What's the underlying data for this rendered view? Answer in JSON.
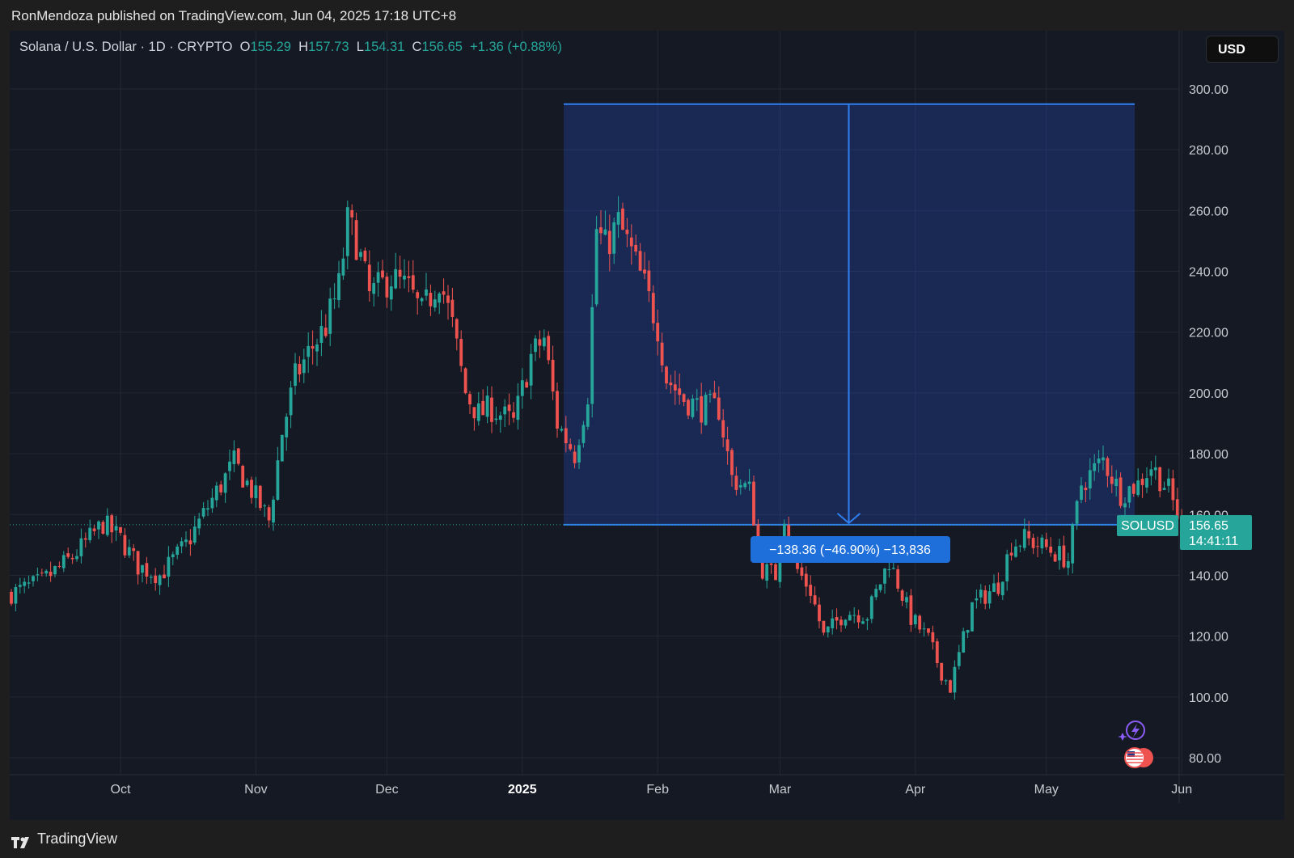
{
  "header": {
    "published": "RonMendoza published on TradingView.com, Jun 04, 2025 17:18 UTC+8"
  },
  "footer": {
    "brand": "TradingView"
  },
  "legend": {
    "symbol": "Solana / U.S. Dollar · 1D · CRYPTO",
    "open_label": "O",
    "open": "155.29",
    "high_label": "H",
    "high": "157.73",
    "low_label": "L",
    "low": "154.31",
    "close_label": "C",
    "close": "156.65",
    "change": "+1.36 (+0.88%)"
  },
  "currency": "USD",
  "price_tag": {
    "symbol": "SOLUSD",
    "price": "156.65",
    "countdown": "14:41:11"
  },
  "measure": {
    "label": "−138.36 (−46.90%) −13,836",
    "from_price": 295,
    "to_price": 156.65
  },
  "colors": {
    "up": "#26a69a",
    "down": "#ef5350",
    "accent": "#2962ff",
    "bg": "#151924"
  },
  "chart_data": {
    "type": "candlestick",
    "title": "Solana / U.S. Dollar · 1D · CRYPTO",
    "ylim": [
      75,
      315
    ],
    "y_ticks": [
      "300.00",
      "280.00",
      "260.00",
      "240.00",
      "220.00",
      "200.00",
      "180.00",
      "160.00",
      "140.00",
      "120.00",
      "100.00",
      "80.00"
    ],
    "x_ticks": [
      {
        "label": "Oct",
        "month": 1
      },
      {
        "label": "Nov",
        "month": 2
      },
      {
        "label": "Dec",
        "month": 3
      },
      {
        "label": "2025",
        "month": 4,
        "bold": true
      },
      {
        "label": "Feb",
        "month": 5
      },
      {
        "label": "Mar",
        "month": 6
      },
      {
        "label": "Apr",
        "month": 7
      },
      {
        "label": "May",
        "month": 8
      },
      {
        "label": "Jun",
        "month": 9
      }
    ],
    "x_range": [
      "2024-09-06",
      "2025-06-04"
    ],
    "series": [
      {
        "name": "SOLUSD",
        "anchors": [
          [
            "2024-09-06",
            134
          ],
          [
            "2024-09-13",
            138
          ],
          [
            "2024-09-20",
            146
          ],
          [
            "2024-09-27",
            157
          ],
          [
            "2024-10-01",
            152
          ],
          [
            "2024-10-05",
            143
          ],
          [
            "2024-10-10",
            140
          ],
          [
            "2024-10-16",
            150
          ],
          [
            "2024-10-22",
            165
          ],
          [
            "2024-10-27",
            177
          ],
          [
            "2024-10-31",
            168
          ],
          [
            "2024-11-04",
            158
          ],
          [
            "2024-11-07",
            187
          ],
          [
            "2024-11-10",
            205
          ],
          [
            "2024-11-13",
            213
          ],
          [
            "2024-11-17",
            222
          ],
          [
            "2024-11-20",
            235
          ],
          [
            "2024-11-22",
            256
          ],
          [
            "2024-11-24",
            250
          ],
          [
            "2024-11-27",
            232
          ],
          [
            "2024-12-02",
            238
          ],
          [
            "2024-12-06",
            234
          ],
          [
            "2024-12-09",
            226
          ],
          [
            "2024-12-13",
            238
          ],
          [
            "2024-12-16",
            222
          ],
          [
            "2024-12-19",
            200
          ],
          [
            "2024-12-22",
            193
          ],
          [
            "2024-12-25",
            195
          ],
          [
            "2024-12-30",
            190
          ],
          [
            "2025-01-03",
            212
          ],
          [
            "2025-01-06",
            218
          ],
          [
            "2025-01-09",
            190
          ],
          [
            "2025-01-13",
            180
          ],
          [
            "2025-01-16",
            200
          ],
          [
            "2025-01-18",
            254
          ],
          [
            "2025-01-20",
            248
          ],
          [
            "2025-01-23",
            256
          ],
          [
            "2025-01-26",
            246
          ],
          [
            "2025-01-29",
            235
          ],
          [
            "2025-02-01",
            222
          ],
          [
            "2025-02-03",
            205
          ],
          [
            "2025-02-07",
            198
          ],
          [
            "2025-02-11",
            195
          ],
          [
            "2025-02-15",
            195
          ],
          [
            "2025-02-18",
            172
          ],
          [
            "2025-02-22",
            168
          ],
          [
            "2025-02-25",
            142
          ],
          [
            "2025-02-28",
            140
          ],
          [
            "2025-03-02",
            160
          ],
          [
            "2025-03-04",
            144
          ],
          [
            "2025-03-08",
            135
          ],
          [
            "2025-03-11",
            120
          ],
          [
            "2025-03-16",
            128
          ],
          [
            "2025-03-21",
            127
          ],
          [
            "2025-03-26",
            145
          ],
          [
            "2025-03-31",
            126
          ],
          [
            "2025-04-04",
            119
          ],
          [
            "2025-04-07",
            108
          ],
          [
            "2025-04-09",
            103
          ],
          [
            "2025-04-14",
            130
          ],
          [
            "2025-04-20",
            137
          ],
          [
            "2025-04-23",
            150
          ],
          [
            "2025-04-26",
            152
          ],
          [
            "2025-05-01",
            149
          ],
          [
            "2025-05-06",
            145
          ],
          [
            "2025-05-09",
            170
          ],
          [
            "2025-05-14",
            178
          ],
          [
            "2025-05-18",
            167
          ],
          [
            "2025-05-22",
            170
          ],
          [
            "2025-05-25",
            176
          ],
          [
            "2025-05-29",
            168
          ],
          [
            "2025-06-01",
            156
          ],
          [
            "2025-06-04",
            156.65
          ]
        ]
      }
    ]
  }
}
